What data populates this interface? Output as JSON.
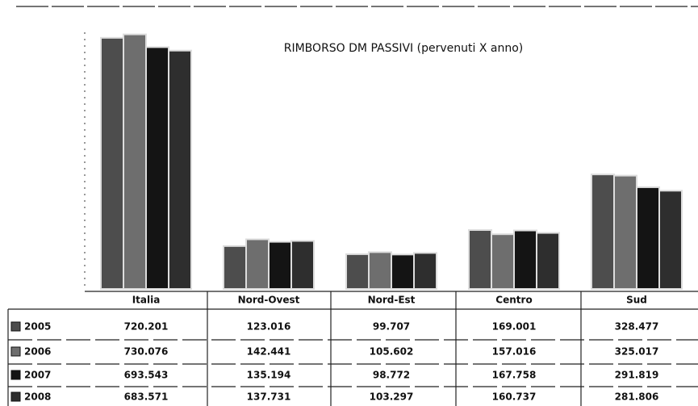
{
  "chart_data": {
    "type": "bar",
    "title": "RIMBORSO DM PASSIVI (pervenuti X anno)",
    "categories": [
      "Italia",
      "Nord-Ovest",
      "Nord-Est",
      "Centro",
      "Sud"
    ],
    "series": [
      {
        "name": "2005",
        "color": "#4d4d4d",
        "values": [
          720201,
          123016,
          99707,
          169001,
          328477
        ],
        "value_labels": [
          "720.201",
          "123.016",
          "99.707",
          "169.001",
          "328.477"
        ]
      },
      {
        "name": "2006",
        "color": "#6e6e6e",
        "values": [
          730076,
          142441,
          105602,
          157016,
          325017
        ],
        "value_labels": [
          "730.076",
          "142.441",
          "105.602",
          "157.016",
          "325.017"
        ]
      },
      {
        "name": "2007",
        "color": "#141414",
        "values": [
          693543,
          135194,
          98772,
          167758,
          291819
        ],
        "value_labels": [
          "693.543",
          "135.194",
          "98.772",
          "167.758",
          "291.819"
        ]
      },
      {
        "name": "2008",
        "color": "#2e2e2e",
        "values": [
          683571,
          137731,
          103297,
          160737,
          281806
        ],
        "value_labels": [
          "683.571",
          "137.731",
          "103.297",
          "160.737",
          "281.806"
        ]
      }
    ],
    "ylim": [
      0,
      750000
    ]
  }
}
